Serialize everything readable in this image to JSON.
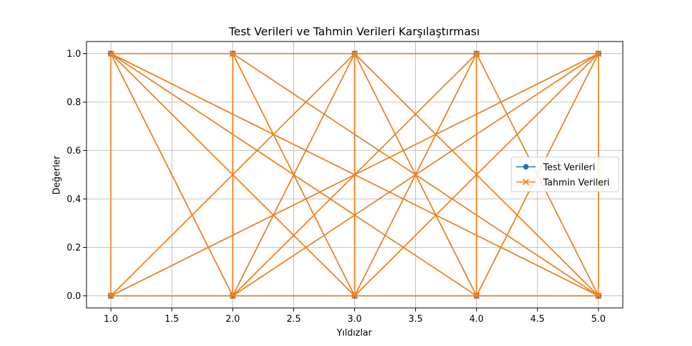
{
  "chart_data": {
    "type": "line",
    "title": "Test Verileri ve Tahmin Verileri Karşılaştırması",
    "xlabel": "Yıldızlar",
    "ylabel": "Değerler",
    "xlim": [
      0.8,
      5.2
    ],
    "ylim": [
      -0.05,
      1.05
    ],
    "xticks": [
      "1.0",
      "1.5",
      "2.0",
      "2.5",
      "3.0",
      "3.5",
      "4.0",
      "4.5",
      "5.0"
    ],
    "yticks": [
      "0.0",
      "0.2",
      "0.4",
      "0.6",
      "0.8",
      "1.0"
    ],
    "grid": true,
    "legend_position": "center-right",
    "x": [
      1,
      5,
      1,
      2,
      1,
      3,
      1,
      4,
      1,
      5,
      2,
      1,
      2,
      3,
      2,
      4,
      2,
      5,
      3,
      1,
      3,
      2,
      3,
      4,
      3,
      5,
      4,
      1,
      4,
      2,
      4,
      3,
      4,
      5,
      5,
      1,
      5,
      2,
      5,
      3,
      5,
      4,
      1,
      5,
      2,
      5,
      3,
      5,
      4,
      5,
      1,
      1,
      2,
      2,
      3,
      3,
      4,
      4,
      5,
      5
    ],
    "series": [
      {
        "name": "Test Verileri",
        "color": "#1f77b4",
        "marker": "circle",
        "values": [
          0,
          1,
          1,
          0,
          0,
          1,
          1,
          0,
          0,
          1,
          0,
          1,
          1,
          0,
          0,
          1,
          1,
          0,
          0,
          1,
          1,
          0,
          0,
          1,
          1,
          0,
          0,
          1,
          1,
          0,
          0,
          1,
          1,
          0,
          0,
          1,
          1,
          0,
          0,
          1,
          1,
          0,
          0,
          0,
          1,
          1,
          0,
          0,
          1,
          1,
          0,
          1,
          0,
          1,
          0,
          1,
          0,
          1,
          0,
          1
        ]
      },
      {
        "name": "Tahmin Verileri",
        "color": "#ff7f0e",
        "marker": "x",
        "values": [
          0,
          1,
          1,
          0,
          0,
          1,
          1,
          0,
          0,
          1,
          0,
          1,
          1,
          0,
          0,
          1,
          1,
          0,
          0,
          1,
          1,
          0,
          0,
          1,
          1,
          0,
          0,
          1,
          1,
          0,
          0,
          1,
          1,
          0,
          0,
          1,
          1,
          0,
          0,
          1,
          1,
          0,
          0,
          0,
          1,
          1,
          0,
          0,
          1,
          1,
          0,
          1,
          0,
          1,
          0,
          1,
          0,
          1,
          0,
          1
        ]
      }
    ]
  }
}
